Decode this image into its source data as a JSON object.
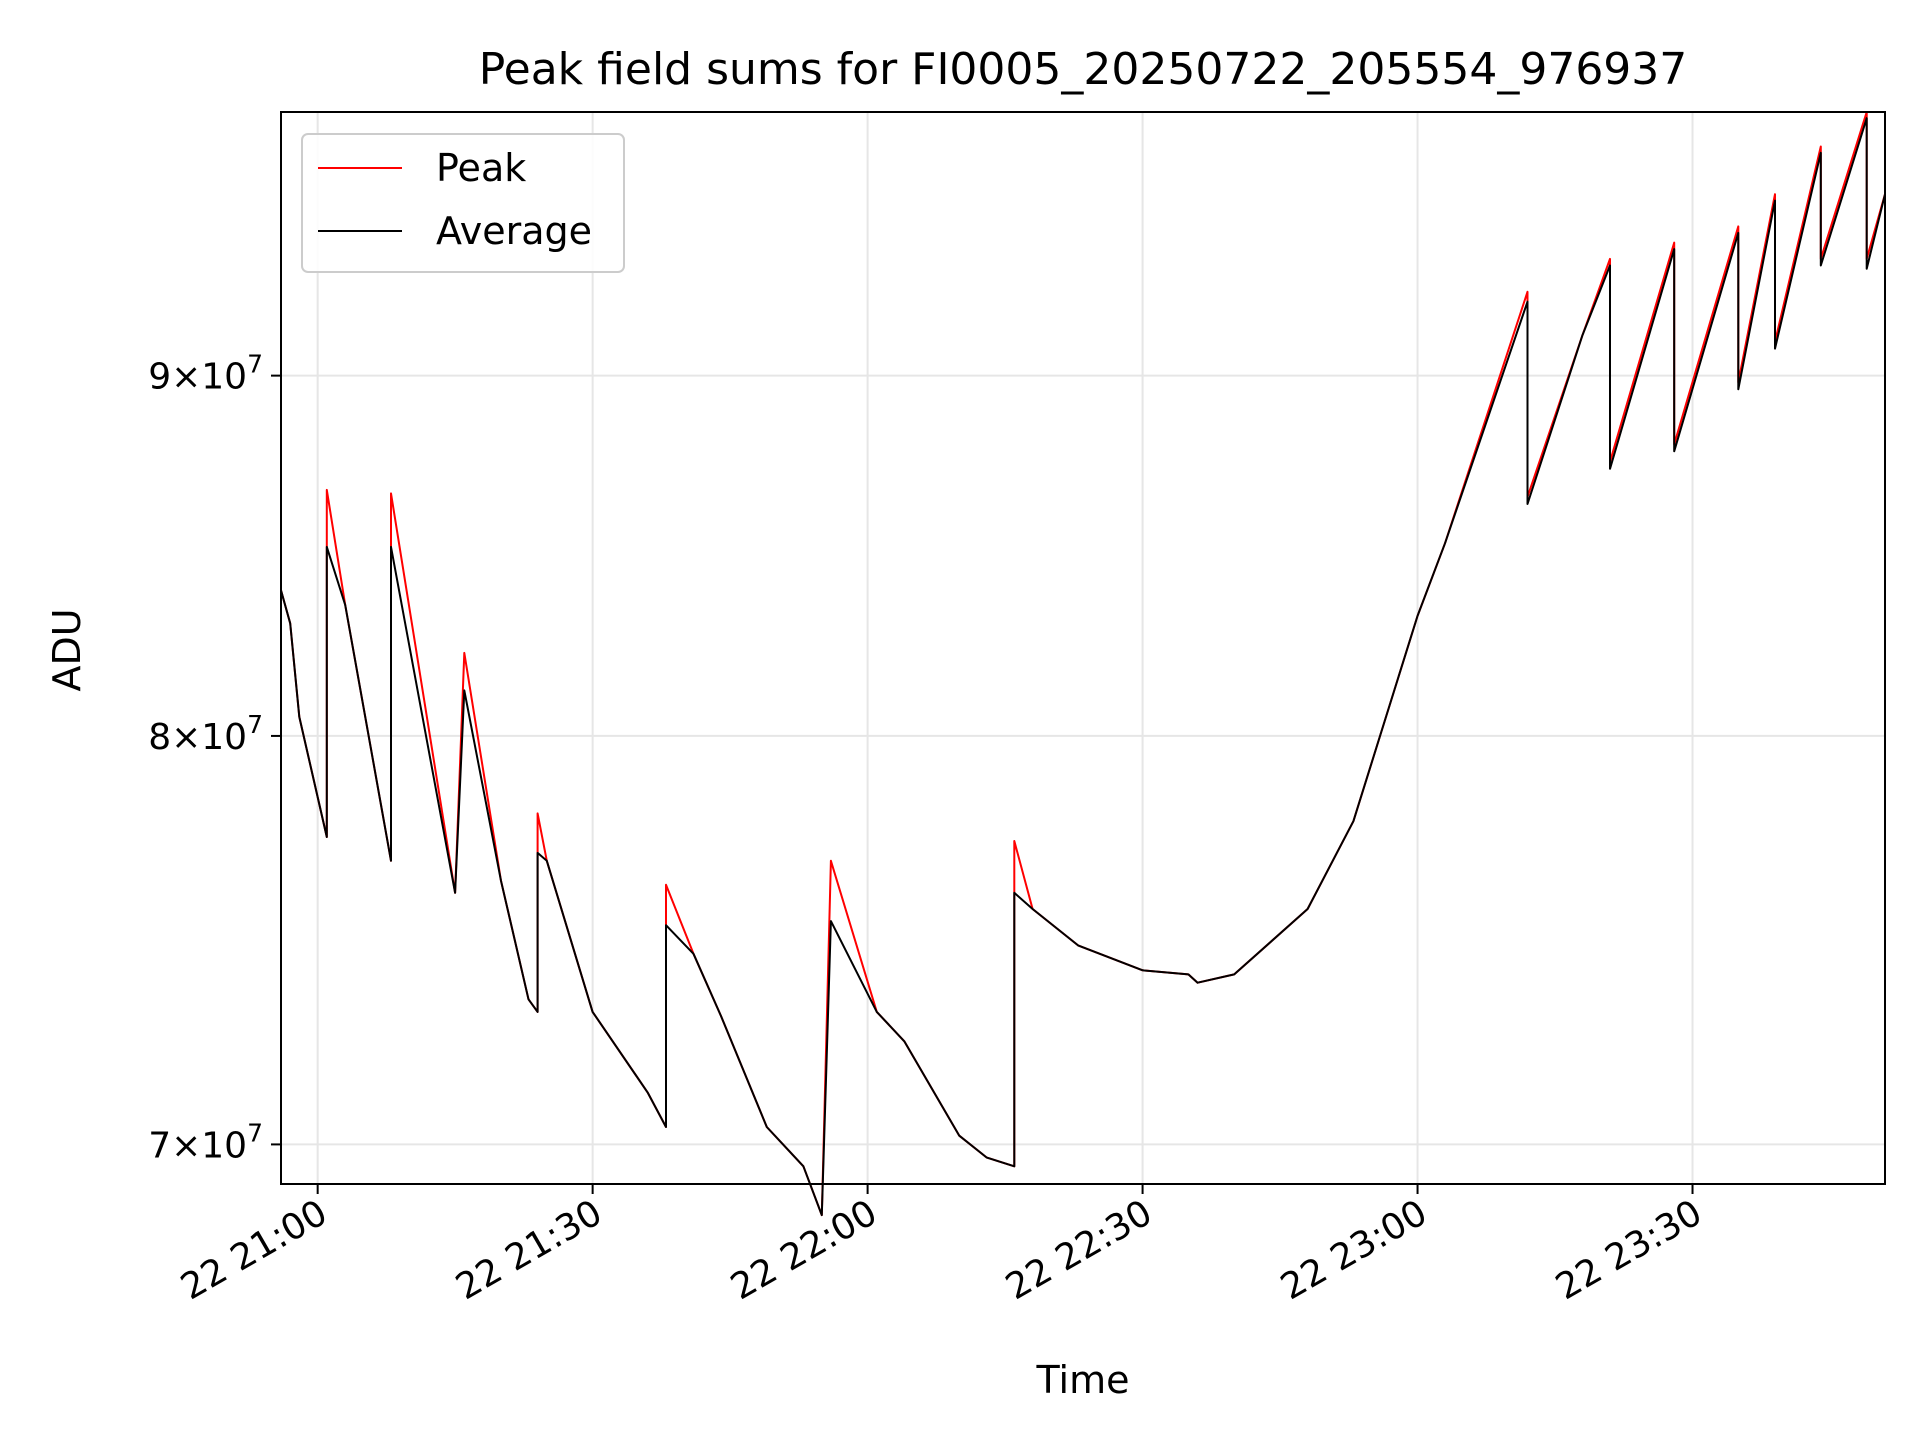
{
  "chart_data": {
    "type": "line",
    "title": "Peak field sums for FI0005_20250722_205554_976937",
    "xlabel": "Time",
    "ylabel": "ADU",
    "x_axis": {
      "type": "time",
      "range": [
        "2025-07-22 20:56",
        "2025-07-22 23:51"
      ],
      "ticks": [
        {
          "t": "2025-07-22 21:00",
          "label": "22 21:00"
        },
        {
          "t": "2025-07-22 21:30",
          "label": "22 21:30"
        },
        {
          "t": "2025-07-22 22:00",
          "label": "22 22:00"
        },
        {
          "t": "2025-07-22 22:30",
          "label": "22 22:30"
        },
        {
          "t": "2025-07-22 23:00",
          "label": "22 23:00"
        },
        {
          "t": "2025-07-22 23:30",
          "label": "22 23:30"
        }
      ]
    },
    "y_axis": {
      "scale": "log",
      "range": [
        69100000,
        98100000
      ],
      "ticks": [
        {
          "value": 70000000,
          "base": "7",
          "exp": "7"
        },
        {
          "value": 80000000,
          "base": "8",
          "exp": "7"
        },
        {
          "value": 90000000,
          "base": "9",
          "exp": "7"
        }
      ]
    },
    "grid": true,
    "legend_position": "upper-left",
    "series": [
      {
        "name": "Peak",
        "color": "#ff0000",
        "points": [
          [
            "2025-07-22 20:56",
            83900000
          ],
          [
            "2025-07-22 20:57",
            83000000
          ],
          [
            "2025-07-22 20:58",
            80500000
          ],
          [
            "2025-07-22 21:01",
            77400000
          ],
          [
            "2025-07-22 21:01",
            86700000
          ],
          [
            "2025-07-22 21:03",
            83500000
          ],
          [
            "2025-07-22 21:08",
            76800000
          ],
          [
            "2025-07-22 21:08",
            86600000
          ],
          [
            "2025-07-22 21:15",
            76000000
          ],
          [
            "2025-07-22 21:16",
            82200000
          ],
          [
            "2025-07-22 21:20",
            76300000
          ],
          [
            "2025-07-22 21:23",
            73400000
          ],
          [
            "2025-07-22 21:24",
            73100000
          ],
          [
            "2025-07-22 21:24",
            78000000
          ],
          [
            "2025-07-22 21:25",
            76800000
          ],
          [
            "2025-07-22 21:30",
            73100000
          ],
          [
            "2025-07-22 21:36",
            71200000
          ],
          [
            "2025-07-22 21:38",
            70400000
          ],
          [
            "2025-07-22 21:38",
            76200000
          ],
          [
            "2025-07-22 21:41",
            74500000
          ],
          [
            "2025-07-22 21:44",
            73000000
          ],
          [
            "2025-07-22 21:49",
            70400000
          ],
          [
            "2025-07-22 21:53",
            69500000
          ],
          [
            "2025-07-22 21:55",
            68400000
          ],
          [
            "2025-07-22 21:56",
            76800000
          ],
          [
            "2025-07-22 22:01",
            73100000
          ],
          [
            "2025-07-22 22:04",
            72400000
          ],
          [
            "2025-07-22 22:10",
            70200000
          ],
          [
            "2025-07-22 22:13",
            69700000
          ],
          [
            "2025-07-22 22:16",
            69500000
          ],
          [
            "2025-07-22 22:16",
            77300000
          ],
          [
            "2025-07-22 22:18",
            75600000
          ],
          [
            "2025-07-22 22:23",
            74700000
          ],
          [
            "2025-07-22 22:30",
            74100000
          ],
          [
            "2025-07-22 22:35",
            74000000
          ],
          [
            "2025-07-22 22:36",
            73800000
          ],
          [
            "2025-07-22 22:40",
            74000000
          ],
          [
            "2025-07-22 22:48",
            75600000
          ],
          [
            "2025-07-22 22:53",
            77800000
          ],
          [
            "2025-07-22 23:00",
            83200000
          ],
          [
            "2025-07-22 23:03",
            85200000
          ],
          [
            "2025-07-22 23:12",
            92500000
          ],
          [
            "2025-07-22 23:12",
            86500000
          ],
          [
            "2025-07-22 23:18",
            91200000
          ],
          [
            "2025-07-22 23:21",
            93500000
          ],
          [
            "2025-07-22 23:21",
            87500000
          ],
          [
            "2025-07-22 23:28",
            94000000
          ],
          [
            "2025-07-22 23:28",
            88000000
          ],
          [
            "2025-07-22 23:35",
            94500000
          ],
          [
            "2025-07-22 23:35",
            89800000
          ],
          [
            "2025-07-22 23:39",
            95500000
          ],
          [
            "2025-07-22 23:39",
            91000000
          ],
          [
            "2025-07-22 23:44",
            97000000
          ],
          [
            "2025-07-22 23:44",
            93500000
          ],
          [
            "2025-07-22 23:49",
            98100000
          ],
          [
            "2025-07-22 23:49",
            93500000
          ],
          [
            "2025-07-22 23:51",
            95500000
          ]
        ]
      },
      {
        "name": "Average",
        "color": "#000000",
        "points": [
          [
            "2025-07-22 20:56",
            83900000
          ],
          [
            "2025-07-22 20:57",
            83000000
          ],
          [
            "2025-07-22 20:58",
            80500000
          ],
          [
            "2025-07-22 21:01",
            77400000
          ],
          [
            "2025-07-22 21:01",
            85100000
          ],
          [
            "2025-07-22 21:03",
            83500000
          ],
          [
            "2025-07-22 21:08",
            76800000
          ],
          [
            "2025-07-22 21:08",
            85100000
          ],
          [
            "2025-07-22 21:15",
            76000000
          ],
          [
            "2025-07-22 21:16",
            81200000
          ],
          [
            "2025-07-22 21:20",
            76300000
          ],
          [
            "2025-07-22 21:23",
            73400000
          ],
          [
            "2025-07-22 21:24",
            73100000
          ],
          [
            "2025-07-22 21:24",
            77000000
          ],
          [
            "2025-07-22 21:25",
            76800000
          ],
          [
            "2025-07-22 21:30",
            73100000
          ],
          [
            "2025-07-22 21:36",
            71200000
          ],
          [
            "2025-07-22 21:38",
            70400000
          ],
          [
            "2025-07-22 21:38",
            75200000
          ],
          [
            "2025-07-22 21:41",
            74500000
          ],
          [
            "2025-07-22 21:44",
            73000000
          ],
          [
            "2025-07-22 21:49",
            70400000
          ],
          [
            "2025-07-22 21:53",
            69500000
          ],
          [
            "2025-07-22 21:55",
            68400000
          ],
          [
            "2025-07-22 21:56",
            75300000
          ],
          [
            "2025-07-22 22:01",
            73100000
          ],
          [
            "2025-07-22 22:04",
            72400000
          ],
          [
            "2025-07-22 22:10",
            70200000
          ],
          [
            "2025-07-22 22:13",
            69700000
          ],
          [
            "2025-07-22 22:16",
            69500000
          ],
          [
            "2025-07-22 22:16",
            76000000
          ],
          [
            "2025-07-22 22:18",
            75600000
          ],
          [
            "2025-07-22 22:23",
            74700000
          ],
          [
            "2025-07-22 22:30",
            74100000
          ],
          [
            "2025-07-22 22:35",
            74000000
          ],
          [
            "2025-07-22 22:36",
            73800000
          ],
          [
            "2025-07-22 22:40",
            74000000
          ],
          [
            "2025-07-22 22:48",
            75600000
          ],
          [
            "2025-07-22 22:53",
            77800000
          ],
          [
            "2025-07-22 23:00",
            83200000
          ],
          [
            "2025-07-22 23:03",
            85200000
          ],
          [
            "2025-07-22 23:12",
            92200000
          ],
          [
            "2025-07-22 23:12",
            86300000
          ],
          [
            "2025-07-22 23:18",
            91200000
          ],
          [
            "2025-07-22 23:21",
            93300000
          ],
          [
            "2025-07-22 23:21",
            87300000
          ],
          [
            "2025-07-22 23:28",
            93800000
          ],
          [
            "2025-07-22 23:28",
            87800000
          ],
          [
            "2025-07-22 23:35",
            94300000
          ],
          [
            "2025-07-22 23:35",
            89600000
          ],
          [
            "2025-07-22 23:39",
            95300000
          ],
          [
            "2025-07-22 23:39",
            90800000
          ],
          [
            "2025-07-22 23:44",
            96800000
          ],
          [
            "2025-07-22 23:44",
            93300000
          ],
          [
            "2025-07-22 23:49",
            97900000
          ],
          [
            "2025-07-22 23:49",
            93200000
          ],
          [
            "2025-07-22 23:51",
            95500000
          ]
        ]
      }
    ]
  }
}
